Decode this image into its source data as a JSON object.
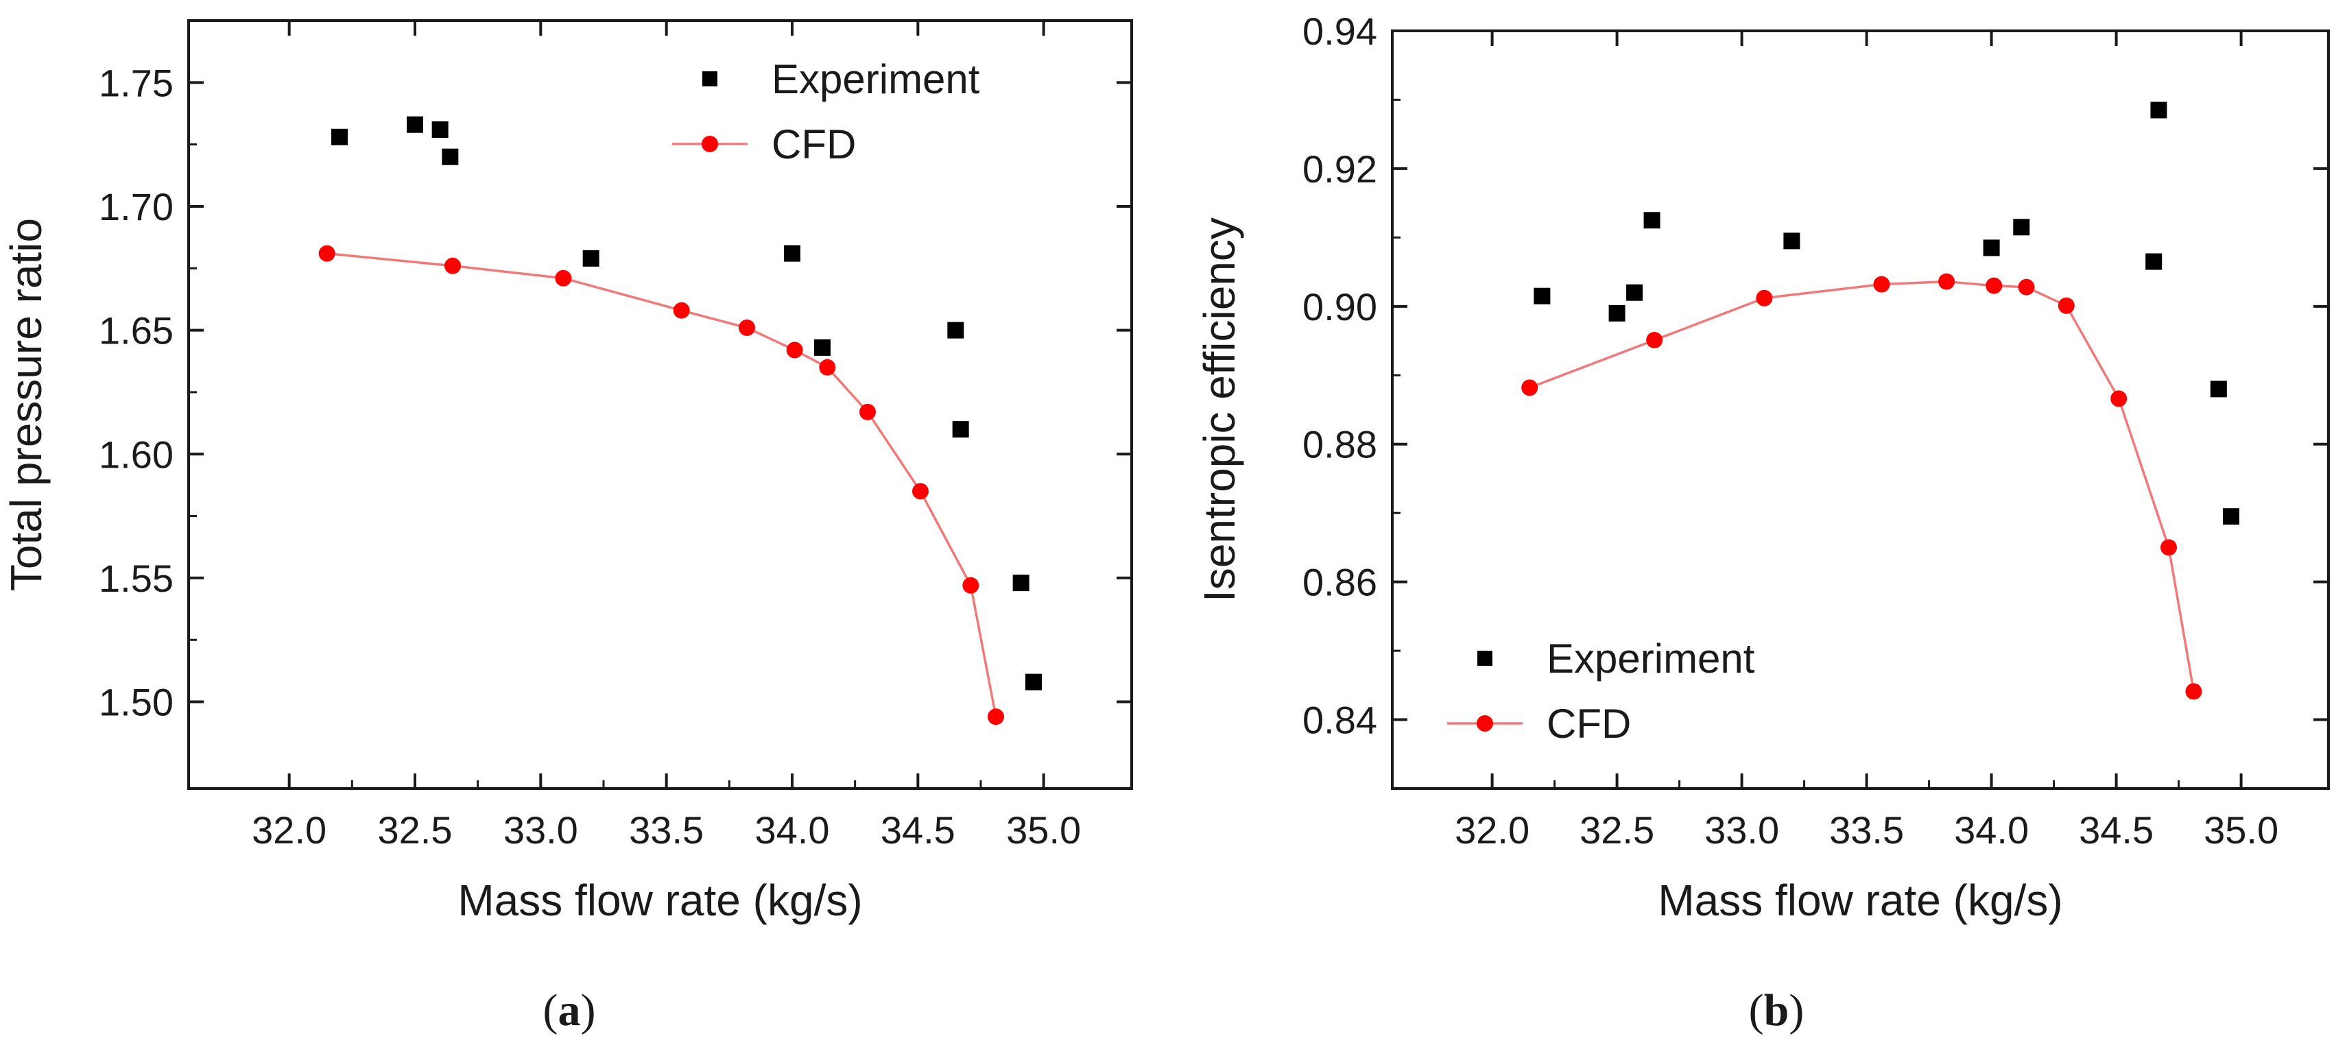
{
  "colors": {
    "experiment": "#000000",
    "cfd_line": "#f07a7a",
    "cfd_marker": "#ff0000",
    "axis": "#1a1a1a"
  },
  "chart_data": [
    {
      "type": "scatter",
      "panel_label": "a",
      "xlabel": "Mass flow rate (kg/s)",
      "ylabel": "Total pressure ratio",
      "xlim": [
        31.6,
        35.35
      ],
      "ylim": [
        1.465,
        1.775
      ],
      "x_ticks": [
        32.0,
        32.5,
        33.0,
        33.5,
        34.0,
        34.5,
        35.0
      ],
      "x_tick_labels": [
        "32.0",
        "32.5",
        "33.0",
        "33.5",
        "34.0",
        "34.5",
        "35.0"
      ],
      "y_ticks": [
        1.5,
        1.55,
        1.6,
        1.65,
        1.7,
        1.75
      ],
      "y_tick_labels": [
        "1.50",
        "1.55",
        "1.60",
        "1.65",
        "1.70",
        "1.75"
      ],
      "legend_position": "top-right",
      "series": [
        {
          "name": "Experiment",
          "style": "markers-square",
          "x": [
            32.2,
            32.5,
            32.6,
            32.64,
            33.2,
            34.0,
            34.12,
            34.65,
            34.67,
            34.91,
            34.96
          ],
          "y": [
            1.728,
            1.733,
            1.731,
            1.72,
            1.679,
            1.681,
            1.643,
            1.65,
            1.61,
            1.548,
            1.508
          ]
        },
        {
          "name": "CFD",
          "style": "line-circle",
          "x": [
            32.15,
            32.65,
            33.09,
            33.56,
            33.82,
            34.01,
            34.14,
            34.3,
            34.51,
            34.71,
            34.81
          ],
          "y": [
            1.681,
            1.676,
            1.671,
            1.658,
            1.651,
            1.642,
            1.635,
            1.617,
            1.585,
            1.547,
            1.494
          ]
        }
      ]
    },
    {
      "type": "scatter",
      "panel_label": "b",
      "xlabel": "Mass flow rate (kg/s)",
      "ylabel": "Isentropic efficiency",
      "xlim": [
        31.6,
        35.35
      ],
      "ylim": [
        0.83,
        0.94
      ],
      "x_ticks": [
        32.0,
        32.5,
        33.0,
        33.5,
        34.0,
        34.5,
        35.0
      ],
      "x_tick_labels": [
        "32.0",
        "32.5",
        "33.0",
        "33.5",
        "34.0",
        "34.5",
        "35.0"
      ],
      "y_ticks": [
        0.84,
        0.86,
        0.88,
        0.9,
        0.92,
        0.94
      ],
      "y_tick_labels": [
        "0.84",
        "0.86",
        "0.88",
        "0.90",
        "0.92",
        "0.94"
      ],
      "legend_position": "bottom-left",
      "series": [
        {
          "name": "Experiment",
          "style": "markers-square",
          "x": [
            32.2,
            32.5,
            32.57,
            32.64,
            33.2,
            34.0,
            34.12,
            34.65,
            34.67,
            34.91,
            34.96
          ],
          "y": [
            0.9015,
            0.899,
            0.902,
            0.9125,
            0.9095,
            0.9085,
            0.9115,
            0.9065,
            0.9285,
            0.888,
            0.8695
          ]
        },
        {
          "name": "CFD",
          "style": "line-circle",
          "x": [
            32.15,
            32.65,
            33.09,
            33.56,
            33.82,
            34.01,
            34.14,
            34.3,
            34.51,
            34.71,
            34.81
          ],
          "y": [
            0.8882,
            0.8951,
            0.9012,
            0.9032,
            0.9036,
            0.903,
            0.9028,
            0.9001,
            0.8866,
            0.865,
            0.8441
          ]
        }
      ]
    }
  ]
}
